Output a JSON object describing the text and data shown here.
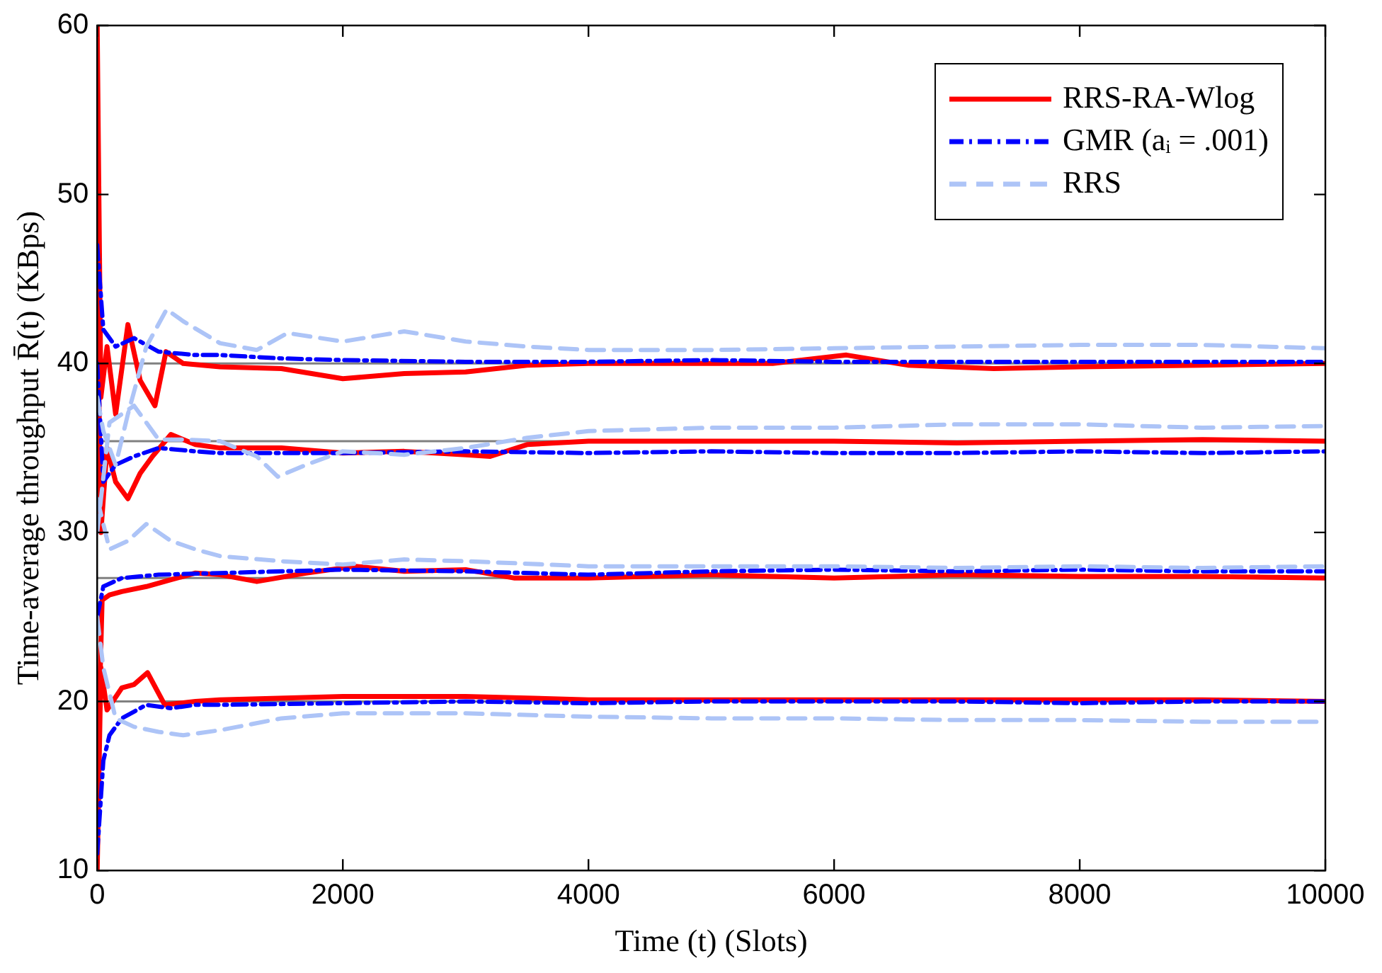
{
  "chart_data": {
    "type": "line",
    "xlabel": "Time (t) (Slots)",
    "ylabel": "Time-average throughput R̄(t) (KBps)",
    "xlim": [
      0,
      10000
    ],
    "xticks": [
      0,
      2000,
      4000,
      6000,
      8000,
      10000
    ],
    "ylim": [
      10,
      60
    ],
    "yticks": [
      10,
      20,
      30,
      40,
      50,
      60
    ],
    "grid": false,
    "legend": "top right",
    "marker": "none",
    "ref_lines": [
      {
        "axis": "y",
        "value": 40,
        "color": "#808080"
      },
      {
        "axis": "y",
        "value": 35.4,
        "color": "#808080"
      },
      {
        "axis": "y",
        "value": 27.3,
        "color": "#808080"
      },
      {
        "axis": "y",
        "value": 20,
        "color": "#808080"
      }
    ],
    "series": [
      {
        "name": "RRS-RA-Wlog",
        "color": "#ff0000",
        "line_style": "solid",
        "x": [
          0,
          30,
          80,
          150,
          250,
          350,
          470,
          560,
          700,
          1000,
          1500,
          2000,
          2500,
          3000,
          3500,
          4000,
          5000,
          5500,
          6100,
          6600,
          7300,
          8000,
          9000,
          10000
        ],
        "values": [
          60,
          38,
          41,
          37,
          42.3,
          39,
          37.5,
          40.7,
          40,
          39.8,
          39.7,
          39.1,
          39.4,
          39.5,
          39.9,
          40,
          40,
          40,
          40.5,
          39.9,
          39.7,
          39.8,
          39.9,
          40
        ]
      },
      {
        "color": "#ff0000",
        "line_style": "solid",
        "x": [
          0,
          30,
          80,
          150,
          250,
          350,
          450,
          600,
          800,
          1000,
          1500,
          2000,
          2500,
          3000,
          3200,
          3500,
          4000,
          5000,
          6000,
          7000,
          8000,
          9000,
          10000
        ],
        "values": [
          45,
          30,
          35,
          33,
          32,
          33.5,
          34.5,
          35.8,
          35.2,
          35,
          35,
          34.7,
          34.8,
          34.6,
          34.5,
          35.2,
          35.4,
          35.4,
          35.4,
          35.3,
          35.4,
          35.5,
          35.4
        ]
      },
      {
        "color": "#ff0000",
        "line_style": "solid",
        "x": [
          0,
          40,
          100,
          200,
          400,
          600,
          800,
          1000,
          1300,
          1700,
          2100,
          2500,
          3000,
          3400,
          4000,
          5000,
          6000,
          7000,
          8000,
          9000,
          10000
        ],
        "values": [
          15,
          26,
          26.3,
          26.5,
          26.8,
          27.2,
          27.6,
          27.5,
          27.1,
          27.6,
          28,
          27.7,
          27.8,
          27.3,
          27.3,
          27.5,
          27.3,
          27.5,
          27.4,
          27.4,
          27.3
        ]
      },
      {
        "color": "#ff0000",
        "line_style": "solid",
        "x": [
          0,
          30,
          80,
          200,
          300,
          410,
          550,
          800,
          1000,
          2000,
          3000,
          4000,
          5000,
          6000,
          7000,
          8000,
          9000,
          10000
        ],
        "values": [
          10,
          22,
          19.5,
          20.8,
          21,
          21.7,
          19.8,
          20,
          20.1,
          20.3,
          20.3,
          20.1,
          20.1,
          20.1,
          20.1,
          20.1,
          20.1,
          20
        ]
      },
      {
        "name": "GMR (aᵢ = .001)",
        "color": "#0000ff",
        "line_style": "dotted",
        "x": [
          0,
          50,
          150,
          300,
          500,
          800,
          1000,
          1500,
          2000,
          3000,
          4000,
          5000,
          6000,
          7000,
          8000,
          9000,
          10000
        ],
        "values": [
          47,
          42,
          41,
          41.5,
          40.7,
          40.5,
          40.5,
          40.3,
          40.2,
          40.1,
          40.1,
          40.2,
          40.1,
          40.1,
          40.1,
          40.1,
          40.1
        ]
      },
      {
        "color": "#0000ff",
        "line_style": "dotted",
        "x": [
          0,
          50,
          150,
          300,
          500,
          800,
          1000,
          2000,
          3000,
          4000,
          5000,
          6000,
          7000,
          8000,
          9000,
          10000
        ],
        "values": [
          40,
          33,
          34,
          34.5,
          35,
          34.8,
          34.7,
          34.7,
          34.8,
          34.7,
          34.8,
          34.7,
          34.7,
          34.8,
          34.7,
          34.8
        ]
      },
      {
        "color": "#0000ff",
        "line_style": "dotted",
        "x": [
          0,
          50,
          200,
          500,
          1000,
          2000,
          3000,
          4000,
          5000,
          6000,
          7000,
          8000,
          9000,
          10000
        ],
        "values": [
          25,
          26.8,
          27.3,
          27.5,
          27.6,
          27.8,
          27.7,
          27.5,
          27.7,
          27.8,
          27.7,
          27.8,
          27.7,
          27.7
        ]
      },
      {
        "color": "#0000ff",
        "line_style": "dotted",
        "x": [
          0,
          50,
          100,
          200,
          400,
          600,
          800,
          1000,
          2000,
          3000,
          4000,
          5000,
          6000,
          7000,
          8000,
          9000,
          10000
        ],
        "values": [
          11,
          16.5,
          18,
          19,
          19.8,
          19.6,
          19.8,
          19.8,
          19.9,
          20,
          19.9,
          20,
          20,
          20,
          19.9,
          20,
          20
        ]
      },
      {
        "name": "RRS",
        "color": "#adc4f7",
        "line_style": "dashed",
        "x": [
          0,
          50,
          150,
          250,
          400,
          565,
          700,
          1000,
          1300,
          1550,
          2000,
          2500,
          3000,
          3500,
          4000,
          5000,
          6000,
          7000,
          8000,
          9000,
          10000
        ],
        "values": [
          38,
          36,
          34,
          37,
          41,
          43.2,
          42.5,
          41.2,
          40.8,
          41.8,
          41.3,
          41.9,
          41.3,
          41,
          40.8,
          40.8,
          40.9,
          41,
          41.1,
          41.1,
          40.9
        ]
      },
      {
        "color": "#adc4f7",
        "line_style": "dashed",
        "x": [
          0,
          100,
          300,
          500,
          700,
          1000,
          1300,
          1470,
          1700,
          2000,
          2500,
          3000,
          3500,
          4000,
          5000,
          6000,
          7000,
          8000,
          9000,
          10000
        ],
        "values": [
          30,
          36.5,
          37.5,
          35.5,
          35.5,
          35.4,
          34.5,
          33.3,
          34,
          34.8,
          34.6,
          35,
          35.6,
          36,
          36.2,
          36.2,
          36.4,
          36.4,
          36.2,
          36.3
        ]
      },
      {
        "color": "#adc4f7",
        "line_style": "dashed",
        "x": [
          0,
          100,
          250,
          400,
          600,
          800,
          1000,
          1500,
          2000,
          2500,
          3000,
          4000,
          5000,
          6000,
          7000,
          8000,
          9000,
          10000
        ],
        "values": [
          32,
          29,
          29.5,
          30.5,
          29.5,
          29,
          28.6,
          28.3,
          28.1,
          28.4,
          28.3,
          28,
          28,
          28,
          27.9,
          28,
          27.9,
          28
        ]
      },
      {
        "color": "#adc4f7",
        "line_style": "dashed",
        "x": [
          0,
          50,
          150,
          300,
          500,
          700,
          1000,
          1500,
          2000,
          3000,
          4000,
          5000,
          6000,
          7000,
          8000,
          9000,
          10000
        ],
        "values": [
          25,
          22,
          19,
          18.5,
          18.2,
          18,
          18.3,
          19,
          19.3,
          19.3,
          19.1,
          19,
          19,
          18.9,
          18.9,
          18.8,
          18.8
        ]
      }
    ]
  }
}
